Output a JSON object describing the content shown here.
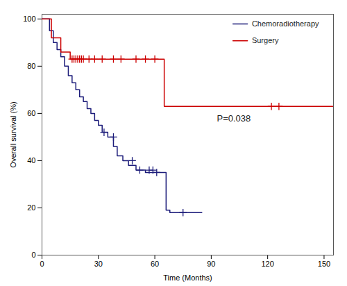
{
  "chart_data": {
    "type": "step",
    "xlabel": "Time (Months)",
    "ylabel": "Overall survival (%)",
    "xlim": [
      0,
      155
    ],
    "ylim": [
      0,
      102
    ],
    "xticks": [
      0,
      30,
      60,
      90,
      120,
      150
    ],
    "yticks": [
      0,
      20,
      40,
      60,
      80,
      100
    ],
    "legend": "top-right",
    "annotations": [
      {
        "text": "P=0.038"
      }
    ],
    "series": [
      {
        "name": "Chemoradiotherapy",
        "color": "#1c1c7a",
        "marker": "plus",
        "x": [
          0,
          4,
          6,
          8,
          10,
          12,
          14,
          16,
          18,
          20,
          22,
          24,
          26,
          28,
          30,
          32,
          35,
          38,
          40,
          43,
          46,
          50,
          55,
          58,
          62,
          66,
          68,
          85
        ],
        "values": [
          100,
          95,
          90,
          87,
          84,
          80,
          76,
          73,
          70,
          67,
          65,
          62,
          60,
          57,
          55,
          52,
          50,
          46,
          42,
          40,
          38,
          36,
          35,
          35,
          35,
          19,
          18,
          18
        ],
        "censors": [
          [
            33,
            52
          ],
          [
            38,
            50
          ],
          [
            48,
            40
          ],
          [
            52,
            36
          ],
          [
            57,
            36
          ],
          [
            59,
            36
          ],
          [
            61,
            35
          ],
          [
            75,
            18
          ]
        ]
      },
      {
        "name": "Surgery",
        "color": "#cc0000",
        "marker": "plus",
        "x": [
          0,
          5,
          10,
          15,
          65,
          155
        ],
        "values": [
          100,
          92,
          86,
          83,
          63,
          63
        ],
        "censors": [
          [
            16,
            83
          ],
          [
            17,
            83
          ],
          [
            18,
            83
          ],
          [
            19,
            83
          ],
          [
            20,
            83
          ],
          [
            21,
            83
          ],
          [
            22,
            83
          ],
          [
            25,
            83
          ],
          [
            28,
            83
          ],
          [
            32,
            83
          ],
          [
            38,
            83
          ],
          [
            42,
            83
          ],
          [
            50,
            83
          ],
          [
            55,
            83
          ],
          [
            60,
            83
          ],
          [
            122,
            63
          ],
          [
            126,
            63
          ]
        ]
      }
    ]
  }
}
